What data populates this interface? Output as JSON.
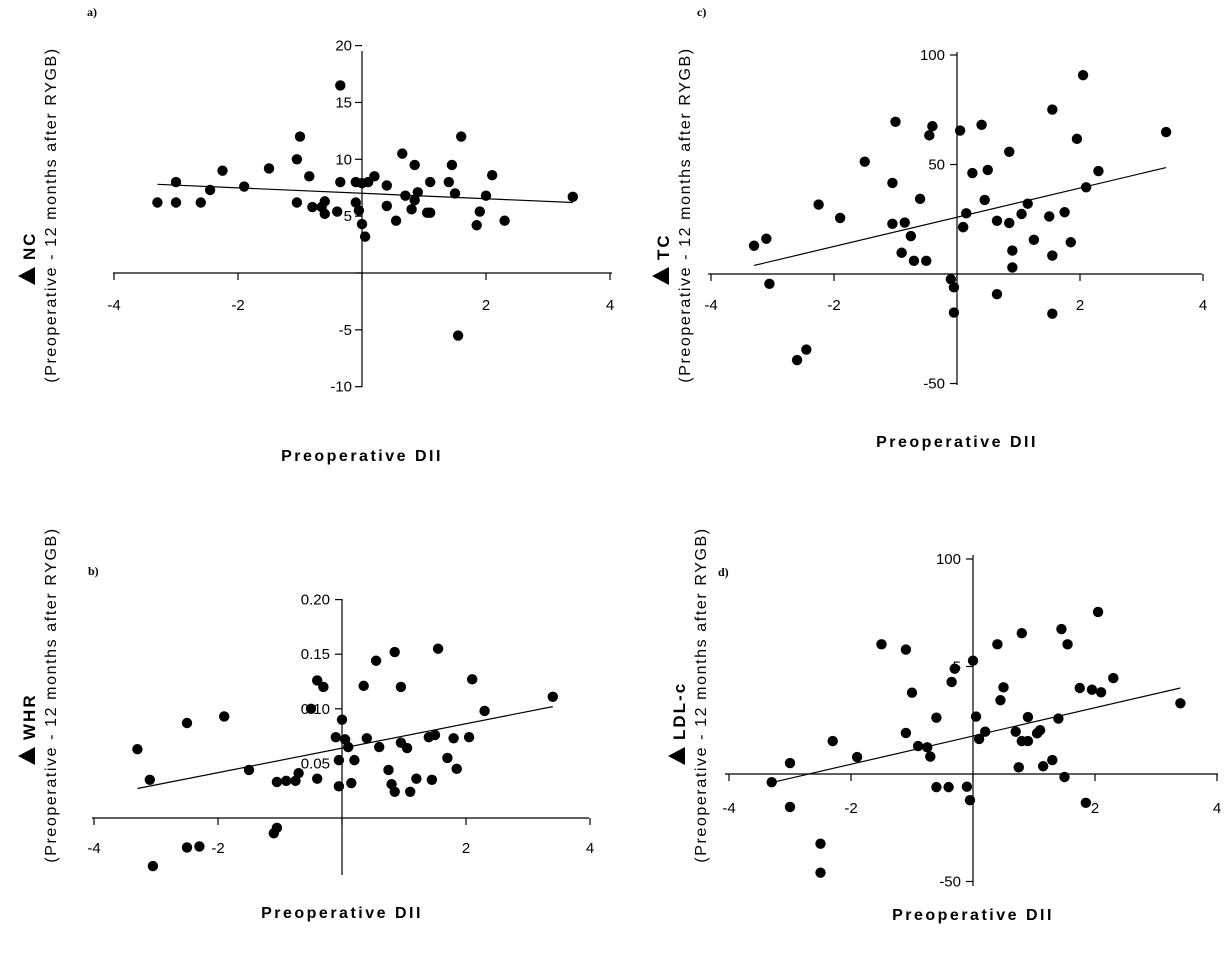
{
  "chart_data": [
    {
      "panel": "a)",
      "type": "scatter",
      "xlabel": "Preoperative DII",
      "ylabel_main": "NC",
      "ylabel_sub": "(Preoperative - 12 months after RYGB)",
      "xlim": [
        -4,
        4
      ],
      "ylim": [
        -10,
        20
      ],
      "xticks": [
        "-4",
        "-2",
        "2",
        "4"
      ],
      "yticks": [
        "-10",
        "-5",
        "5",
        "10",
        "15",
        "20"
      ],
      "fit": {
        "x": [
          -3.3,
          3.4
        ],
        "y": [
          7.8,
          6.2
        ]
      },
      "points": [
        [
          -3.3,
          6.2
        ],
        [
          -3.0,
          8.0
        ],
        [
          -3.0,
          6.2
        ],
        [
          -2.6,
          6.2
        ],
        [
          -2.45,
          7.3
        ],
        [
          -2.25,
          9.0
        ],
        [
          -1.9,
          7.6
        ],
        [
          -1.5,
          9.2
        ],
        [
          -1.05,
          6.2
        ],
        [
          -1.05,
          10.0
        ],
        [
          -1.0,
          12.0
        ],
        [
          -0.85,
          8.5
        ],
        [
          -0.8,
          5.8
        ],
        [
          -0.65,
          5.8
        ],
        [
          -0.6,
          6.3
        ],
        [
          -0.6,
          5.2
        ],
        [
          -0.4,
          5.4
        ],
        [
          -0.35,
          16.5
        ],
        [
          -0.35,
          8.0
        ],
        [
          -0.1,
          8.0
        ],
        [
          -0.1,
          6.2
        ],
        [
          -0.05,
          5.5
        ],
        [
          0.0,
          4.3
        ],
        [
          0.0,
          7.9
        ],
        [
          0.1,
          8.0
        ],
        [
          0.05,
          3.2
        ],
        [
          0.2,
          8.5
        ],
        [
          0.4,
          5.9
        ],
        [
          0.4,
          7.7
        ],
        [
          0.55,
          4.6
        ],
        [
          0.65,
          10.5
        ],
        [
          0.7,
          6.8
        ],
        [
          0.85,
          9.5
        ],
        [
          0.8,
          5.6
        ],
        [
          0.85,
          6.4
        ],
        [
          0.9,
          7.1
        ],
        [
          1.05,
          5.3
        ],
        [
          1.1,
          5.3
        ],
        [
          1.1,
          8.0
        ],
        [
          1.4,
          8.0
        ],
        [
          1.45,
          9.5
        ],
        [
          1.5,
          7.0
        ],
        [
          1.55,
          -5.5
        ],
        [
          1.6,
          12.0
        ],
        [
          1.85,
          4.2
        ],
        [
          1.9,
          5.4
        ],
        [
          2.0,
          6.8
        ],
        [
          2.1,
          8.6
        ],
        [
          2.3,
          4.6
        ],
        [
          3.4,
          6.7
        ]
      ]
    },
    {
      "panel": "b)",
      "type": "scatter",
      "xlabel": "Preoperative DII",
      "ylabel_main": "WHR",
      "ylabel_sub": "(Preoperative - 12 months after RYGB)",
      "xlim": [
        -4,
        4
      ],
      "ylim": [
        -0.05,
        0.2
      ],
      "xticks": [
        "-4",
        "-2",
        "2",
        "4"
      ],
      "yticks": [
        "0.05",
        "0.10",
        "0.15",
        "0.20"
      ],
      "fit": {
        "x": [
          -3.3,
          3.4
        ],
        "y": [
          0.027,
          0.102
        ]
      },
      "points": [
        [
          -3.3,
          0.063
        ],
        [
          -3.1,
          0.035
        ],
        [
          -3.05,
          -0.044
        ],
        [
          -2.5,
          -0.027
        ],
        [
          -2.5,
          0.087
        ],
        [
          -2.3,
          -0.026
        ],
        [
          -1.9,
          0.093
        ],
        [
          -1.5,
          0.044
        ],
        [
          -1.1,
          -0.014
        ],
        [
          -1.05,
          0.033
        ],
        [
          -1.05,
          -0.009
        ],
        [
          -0.9,
          0.034
        ],
        [
          -0.75,
          0.034
        ],
        [
          -0.7,
          0.041
        ],
        [
          -0.5,
          0.1
        ],
        [
          -0.4,
          0.126
        ],
        [
          -0.4,
          0.036
        ],
        [
          -0.3,
          0.12
        ],
        [
          -0.1,
          0.074
        ],
        [
          -0.05,
          0.053
        ],
        [
          -0.05,
          0.029
        ],
        [
          0.0,
          0.09
        ],
        [
          0.05,
          0.072
        ],
        [
          0.1,
          0.065
        ],
        [
          0.15,
          0.032
        ],
        [
          0.2,
          0.053
        ],
        [
          0.35,
          0.121
        ],
        [
          0.4,
          0.073
        ],
        [
          0.55,
          0.144
        ],
        [
          0.6,
          0.065
        ],
        [
          0.75,
          0.044
        ],
        [
          0.8,
          0.031
        ],
        [
          0.85,
          0.024
        ],
        [
          0.85,
          0.152
        ],
        [
          0.95,
          0.12
        ],
        [
          0.95,
          0.069
        ],
        [
          1.05,
          0.064
        ],
        [
          1.1,
          0.024
        ],
        [
          1.2,
          0.036
        ],
        [
          1.4,
          0.074
        ],
        [
          1.45,
          0.035
        ],
        [
          1.5,
          0.076
        ],
        [
          1.55,
          0.155
        ],
        [
          1.7,
          0.055
        ],
        [
          1.8,
          0.073
        ],
        [
          1.85,
          0.045
        ],
        [
          2.05,
          0.074
        ],
        [
          2.1,
          0.127
        ],
        [
          2.3,
          0.098
        ],
        [
          3.4,
          0.111
        ]
      ]
    },
    {
      "panel": "c)",
      "type": "scatter",
      "xlabel": "Preoperative DII",
      "ylabel_main": "TC",
      "ylabel_sub": "(Preoperative - 12 months after RYGB)",
      "xlim": [
        -4,
        4
      ],
      "ylim": [
        -50,
        100
      ],
      "xticks": [
        "-4",
        "-2",
        "2",
        "4"
      ],
      "yticks": [
        "-50",
        "50",
        "100"
      ],
      "fit": {
        "x": [
          -3.3,
          3.4
        ],
        "y": [
          3.9,
          48.6
        ]
      },
      "points": [
        [
          -3.3,
          12.9
        ],
        [
          -3.1,
          16.1
        ],
        [
          -3.05,
          -4.5
        ],
        [
          -2.6,
          -39.3
        ],
        [
          -2.45,
          -34.5
        ],
        [
          -2.25,
          31.7
        ],
        [
          -1.9,
          25.6
        ],
        [
          -1.5,
          51.3
        ],
        [
          -1.05,
          41.6
        ],
        [
          -1.05,
          22.9
        ],
        [
          -1.0,
          69.5
        ],
        [
          -0.9,
          9.7
        ],
        [
          -0.85,
          23.5
        ],
        [
          -0.75,
          17.3
        ],
        [
          -0.7,
          6.0
        ],
        [
          -0.6,
          34.3
        ],
        [
          -0.5,
          6.0
        ],
        [
          -0.45,
          63.3
        ],
        [
          -0.4,
          67.5
        ],
        [
          -0.05,
          -6.1
        ],
        [
          -0.1,
          -2.4
        ],
        [
          -0.05,
          -17.6
        ],
        [
          0.05,
          65.5
        ],
        [
          0.1,
          21.4
        ],
        [
          0.1,
          21.4
        ],
        [
          0.15,
          27.7
        ],
        [
          0.25,
          46.1
        ],
        [
          0.4,
          68.1
        ],
        [
          0.45,
          33.8
        ],
        [
          0.5,
          47.5
        ],
        [
          0.65,
          -9.2
        ],
        [
          0.65,
          24.3
        ],
        [
          0.85,
          55.8
        ],
        [
          0.85,
          23.3
        ],
        [
          0.9,
          10.7
        ],
        [
          0.9,
          3.0
        ],
        [
          1.05,
          27.4
        ],
        [
          1.15,
          32.1
        ],
        [
          1.25,
          15.6
        ],
        [
          1.5,
          26.3
        ],
        [
          1.55,
          75.1
        ],
        [
          1.55,
          8.4
        ],
        [
          1.55,
          -18.1
        ],
        [
          1.75,
          28.2
        ],
        [
          1.85,
          14.5
        ],
        [
          1.95,
          61.7
        ],
        [
          2.05,
          90.8
        ],
        [
          2.1,
          39.6
        ],
        [
          2.3,
          47.0
        ],
        [
          3.4,
          64.8
        ]
      ]
    },
    {
      "panel": "d)",
      "type": "scatter",
      "xlabel": "Preoperative DII",
      "ylabel_main": "LDL-c",
      "ylabel_sub": "(Preoperative - 12 months after RYGB)",
      "xlim": [
        -4,
        4
      ],
      "ylim": [
        -50,
        100
      ],
      "xticks": [
        "-4",
        "-2",
        "2",
        "4"
      ],
      "yticks": [
        "-50",
        "5",
        "100"
      ],
      "fit": {
        "x": [
          -3.3,
          3.4
        ],
        "y": [
          -4.0,
          40.0
        ]
      },
      "points": [
        [
          -3.3,
          -3.8
        ],
        [
          -3.0,
          5.1
        ],
        [
          -3.0,
          -15.3
        ],
        [
          -2.5,
          -32.4
        ],
        [
          -2.5,
          -45.9
        ],
        [
          -2.3,
          15.3
        ],
        [
          -1.9,
          7.9
        ],
        [
          -1.5,
          60.3
        ],
        [
          -1.1,
          19.1
        ],
        [
          -1.1,
          57.9
        ],
        [
          -1.0,
          37.8
        ],
        [
          -0.9,
          13.0
        ],
        [
          -0.75,
          12.4
        ],
        [
          -0.7,
          8.1
        ],
        [
          -0.6,
          26.2
        ],
        [
          -0.6,
          -6.1
        ],
        [
          -0.4,
          -6.1
        ],
        [
          -0.35,
          42.8
        ],
        [
          -0.3,
          49.0
        ],
        [
          -0.1,
          -5.9
        ],
        [
          -0.05,
          -12.2
        ],
        [
          0.0,
          52.7
        ],
        [
          0.05,
          26.7
        ],
        [
          0.1,
          16.3
        ],
        [
          0.2,
          19.7
        ],
        [
          0.4,
          60.3
        ],
        [
          0.45,
          34.3
        ],
        [
          0.5,
          40.3
        ],
        [
          0.7,
          19.7
        ],
        [
          0.75,
          3.1
        ],
        [
          0.8,
          65.5
        ],
        [
          0.8,
          15.3
        ],
        [
          0.9,
          15.3
        ],
        [
          0.9,
          26.5
        ],
        [
          1.05,
          18.9
        ],
        [
          1.1,
          20.4
        ],
        [
          1.15,
          3.6
        ],
        [
          1.3,
          6.5
        ],
        [
          1.4,
          25.8
        ],
        [
          1.45,
          67.4
        ],
        [
          1.5,
          -1.4
        ],
        [
          1.55,
          60.3
        ],
        [
          1.75,
          40.0
        ],
        [
          1.85,
          -13.4
        ],
        [
          1.95,
          39.2
        ],
        [
          2.05,
          75.4
        ],
        [
          2.1,
          38.0
        ],
        [
          2.3,
          44.6
        ],
        [
          3.4,
          32.9
        ]
      ]
    }
  ]
}
